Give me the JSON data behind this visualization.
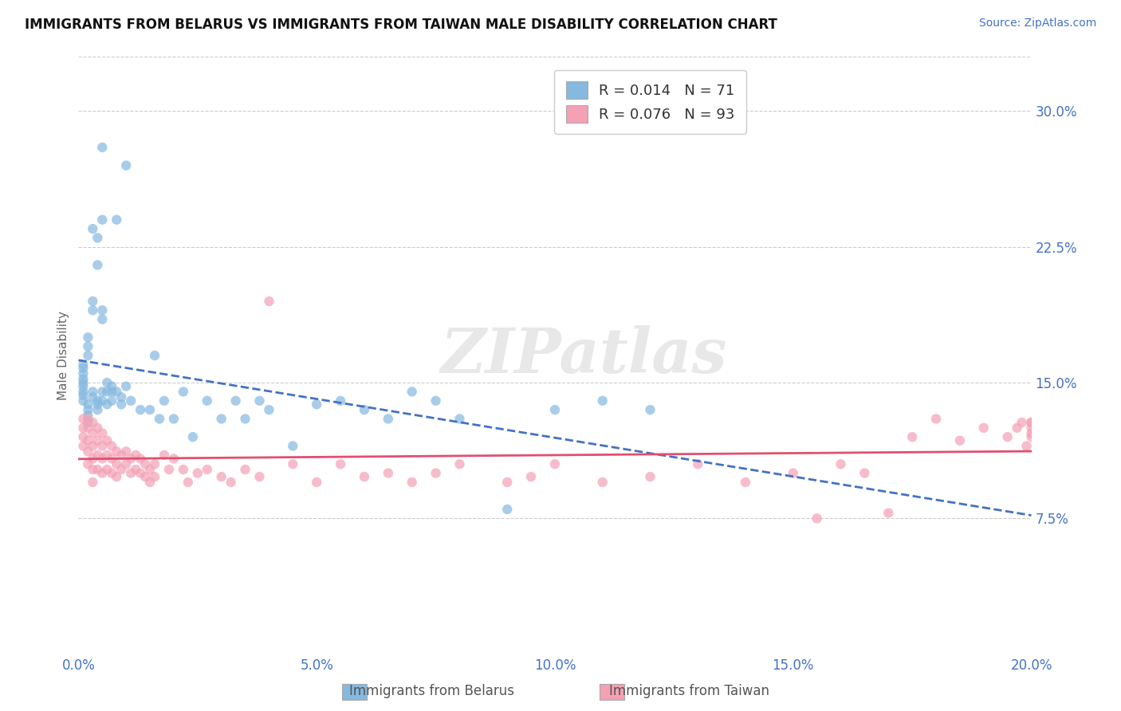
{
  "title": "IMMIGRANTS FROM BELARUS VS IMMIGRANTS FROM TAIWAN MALE DISABILITY CORRELATION CHART",
  "source": "Source: ZipAtlas.com",
  "ylabel": "Male Disability",
  "xlim": [
    0.0,
    0.2
  ],
  "ylim": [
    0.0,
    0.33
  ],
  "yticks": [
    0.075,
    0.15,
    0.225,
    0.3
  ],
  "ytick_labels": [
    "7.5%",
    "15.0%",
    "22.5%",
    "30.0%"
  ],
  "xticks": [
    0.0,
    0.05,
    0.1,
    0.15,
    0.2
  ],
  "xtick_labels": [
    "0.0%",
    "5.0%",
    "10.0%",
    "15.0%",
    "20.0%"
  ],
  "legend_r1": "R = 0.014",
  "legend_n1": "N = 71",
  "legend_r2": "R = 0.076",
  "legend_n2": "N = 93",
  "color_belarus": "#85b9e0",
  "color_taiwan": "#f4a0b5",
  "color_blue_line": "#4472c4",
  "color_pink_line": "#e05070",
  "color_axis_labels": "#4472c4",
  "color_grid": "#cccccc",
  "watermark": "ZIPatlas",
  "belarus_x": [
    0.005,
    0.01,
    0.005,
    0.008,
    0.003,
    0.004,
    0.004,
    0.003,
    0.003,
    0.005,
    0.005,
    0.002,
    0.002,
    0.002,
    0.001,
    0.001,
    0.001,
    0.001,
    0.001,
    0.001,
    0.001,
    0.001,
    0.001,
    0.002,
    0.002,
    0.002,
    0.002,
    0.003,
    0.003,
    0.004,
    0.004,
    0.004,
    0.005,
    0.005,
    0.006,
    0.006,
    0.006,
    0.007,
    0.007,
    0.007,
    0.008,
    0.009,
    0.009,
    0.01,
    0.011,
    0.013,
    0.015,
    0.016,
    0.017,
    0.018,
    0.02,
    0.022,
    0.024,
    0.027,
    0.03,
    0.033,
    0.035,
    0.038,
    0.04,
    0.045,
    0.05,
    0.055,
    0.06,
    0.065,
    0.07,
    0.075,
    0.08,
    0.09,
    0.1,
    0.11,
    0.12
  ],
  "belarus_y": [
    0.28,
    0.27,
    0.24,
    0.24,
    0.235,
    0.23,
    0.215,
    0.195,
    0.19,
    0.19,
    0.185,
    0.175,
    0.17,
    0.165,
    0.16,
    0.158,
    0.155,
    0.152,
    0.15,
    0.148,
    0.145,
    0.143,
    0.14,
    0.138,
    0.135,
    0.132,
    0.128,
    0.145,
    0.142,
    0.14,
    0.138,
    0.135,
    0.145,
    0.14,
    0.15,
    0.145,
    0.138,
    0.148,
    0.145,
    0.14,
    0.145,
    0.142,
    0.138,
    0.148,
    0.14,
    0.135,
    0.135,
    0.165,
    0.13,
    0.14,
    0.13,
    0.145,
    0.12,
    0.14,
    0.13,
    0.14,
    0.13,
    0.14,
    0.135,
    0.115,
    0.138,
    0.14,
    0.135,
    0.13,
    0.145,
    0.14,
    0.13,
    0.08,
    0.135,
    0.14,
    0.135
  ],
  "taiwan_x": [
    0.001,
    0.001,
    0.001,
    0.001,
    0.002,
    0.002,
    0.002,
    0.002,
    0.002,
    0.003,
    0.003,
    0.003,
    0.003,
    0.003,
    0.003,
    0.004,
    0.004,
    0.004,
    0.004,
    0.005,
    0.005,
    0.005,
    0.005,
    0.006,
    0.006,
    0.006,
    0.007,
    0.007,
    0.007,
    0.008,
    0.008,
    0.008,
    0.009,
    0.009,
    0.01,
    0.01,
    0.011,
    0.011,
    0.012,
    0.012,
    0.013,
    0.013,
    0.014,
    0.014,
    0.015,
    0.015,
    0.016,
    0.016,
    0.018,
    0.019,
    0.02,
    0.022,
    0.023,
    0.025,
    0.027,
    0.03,
    0.032,
    0.035,
    0.038,
    0.04,
    0.045,
    0.05,
    0.055,
    0.06,
    0.065,
    0.07,
    0.075,
    0.08,
    0.09,
    0.095,
    0.1,
    0.11,
    0.12,
    0.13,
    0.14,
    0.15,
    0.155,
    0.16,
    0.165,
    0.17,
    0.175,
    0.18,
    0.185,
    0.19,
    0.195,
    0.197,
    0.198,
    0.199,
    0.2,
    0.2,
    0.2,
    0.2,
    0.2
  ],
  "taiwan_y": [
    0.13,
    0.125,
    0.12,
    0.115,
    0.13,
    0.125,
    0.118,
    0.112,
    0.105,
    0.128,
    0.122,
    0.115,
    0.108,
    0.102,
    0.095,
    0.125,
    0.118,
    0.11,
    0.102,
    0.122,
    0.115,
    0.108,
    0.1,
    0.118,
    0.11,
    0.102,
    0.115,
    0.108,
    0.1,
    0.112,
    0.105,
    0.098,
    0.11,
    0.102,
    0.112,
    0.105,
    0.108,
    0.1,
    0.11,
    0.102,
    0.108,
    0.1,
    0.105,
    0.098,
    0.102,
    0.095,
    0.105,
    0.098,
    0.11,
    0.102,
    0.108,
    0.102,
    0.095,
    0.1,
    0.102,
    0.098,
    0.095,
    0.102,
    0.098,
    0.195,
    0.105,
    0.095,
    0.105,
    0.098,
    0.1,
    0.095,
    0.1,
    0.105,
    0.095,
    0.098,
    0.105,
    0.095,
    0.098,
    0.105,
    0.095,
    0.1,
    0.075,
    0.105,
    0.1,
    0.078,
    0.12,
    0.13,
    0.118,
    0.125,
    0.12,
    0.125,
    0.128,
    0.115,
    0.122,
    0.128,
    0.125,
    0.12,
    0.128
  ]
}
